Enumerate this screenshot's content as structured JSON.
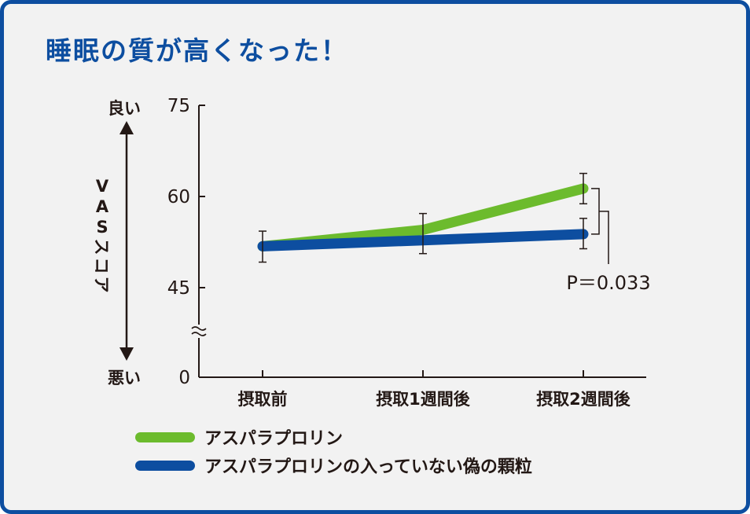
{
  "title": "睡眠の質が高くなった！",
  "colors": {
    "frame": "#0d4ea0",
    "background": "#f2f2f2",
    "title": "#0d4ea0",
    "series_green": "#6cbb2d",
    "series_blue": "#0d4ea0",
    "axis": "#231815"
  },
  "side_axis": {
    "top_label": "良い",
    "bottom_label": "悪い",
    "label_chars": [
      "V",
      "A",
      "S",
      "ス",
      "コ",
      "ア"
    ]
  },
  "chart_data": {
    "type": "line",
    "categories": [
      "摂取前",
      "摂取1週間後",
      "摂取2週間後"
    ],
    "yticks": [
      "75",
      "60",
      "45",
      "0"
    ],
    "ylim": [
      0,
      75
    ],
    "y_axis_break": true,
    "series": [
      {
        "name": "アスパラプロリン",
        "color": "#6cbb2d",
        "values": [
          51.8,
          54.5,
          61.3
        ],
        "err_low": [
          49.2,
          50.6,
          58.8
        ],
        "err_high": [
          54.3,
          57.2,
          63.8
        ]
      },
      {
        "name": "アスパラプロリンの入っていない偽の顆粒",
        "color": "#0d4ea0",
        "values": [
          51.8,
          52.8,
          53.8
        ],
        "err_low": [
          49.2,
          50.6,
          51.4
        ],
        "err_high": [
          54.3,
          57.2,
          56.4
        ]
      }
    ],
    "annotation": "P＝0.033",
    "legend_position": "bottom"
  }
}
